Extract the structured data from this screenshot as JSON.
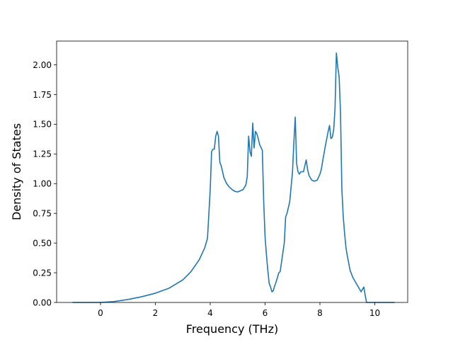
{
  "chart_data": {
    "type": "line",
    "title": "",
    "xlabel": "Frequency (THz)",
    "ylabel": "Density of States",
    "xlim": [
      -1.6,
      11.2
    ],
    "ylim": [
      0,
      2.2
    ],
    "xticks": [
      0,
      2,
      4,
      6,
      8,
      10
    ],
    "xtick_labels": [
      "0",
      "2",
      "4",
      "6",
      "8",
      "10"
    ],
    "yticks": [
      0,
      0.25,
      0.5,
      0.75,
      1.0,
      1.25,
      1.5,
      1.75,
      2.0
    ],
    "ytick_labels": [
      "0.00",
      "0.25",
      "0.50",
      "0.75",
      "1.00",
      "1.25",
      "1.50",
      "1.75",
      "2.00"
    ],
    "grid": false,
    "legend": "none",
    "series": [
      {
        "color": "#1f77b4",
        "x": [
          -1.0,
          0.0,
          0.5,
          1.0,
          1.5,
          2.0,
          2.5,
          3.0,
          3.3,
          3.6,
          3.8,
          3.9,
          4.0,
          4.05,
          4.1,
          4.15,
          4.2,
          4.25,
          4.3,
          4.35,
          4.4,
          4.5,
          4.6,
          4.7,
          4.8,
          4.9,
          5.0,
          5.1,
          5.2,
          5.3,
          5.35,
          5.4,
          5.45,
          5.5,
          5.55,
          5.6,
          5.65,
          5.7,
          5.75,
          5.8,
          5.9,
          5.95,
          6.0,
          6.05,
          6.1,
          6.15,
          6.2,
          6.25,
          6.3,
          6.35,
          6.4,
          6.5,
          6.55,
          6.6,
          6.7,
          6.75,
          6.8,
          6.85,
          6.9,
          7.0,
          7.05,
          7.1,
          7.15,
          7.2,
          7.25,
          7.3,
          7.4,
          7.5,
          7.55,
          7.6,
          7.7,
          7.8,
          7.9,
          8.0,
          8.05,
          8.1,
          8.2,
          8.3,
          8.35,
          8.4,
          8.45,
          8.5,
          8.55,
          8.6,
          8.65,
          8.7,
          8.75,
          8.8,
          8.85,
          8.9,
          8.95,
          9.0,
          9.1,
          9.2,
          9.3,
          9.4,
          9.5,
          9.6,
          9.65,
          9.7,
          9.75,
          9.8,
          10.0,
          10.7
        ],
        "y": [
          0.0,
          0.0,
          0.008,
          0.025,
          0.048,
          0.078,
          0.12,
          0.19,
          0.26,
          0.36,
          0.46,
          0.54,
          0.95,
          1.27,
          1.29,
          1.29,
          1.4,
          1.44,
          1.4,
          1.18,
          1.15,
          1.05,
          1.0,
          0.97,
          0.95,
          0.935,
          0.93,
          0.94,
          0.95,
          0.99,
          1.06,
          1.4,
          1.27,
          1.23,
          1.51,
          1.3,
          1.44,
          1.42,
          1.38,
          1.33,
          1.28,
          0.85,
          0.55,
          0.4,
          0.27,
          0.16,
          0.13,
          0.09,
          0.1,
          0.14,
          0.17,
          0.25,
          0.26,
          0.34,
          0.5,
          0.72,
          0.75,
          0.8,
          0.85,
          1.1,
          1.35,
          1.56,
          1.17,
          1.1,
          1.08,
          1.1,
          1.1,
          1.2,
          1.12,
          1.07,
          1.03,
          1.02,
          1.03,
          1.08,
          1.12,
          1.19,
          1.32,
          1.44,
          1.49,
          1.38,
          1.39,
          1.45,
          1.63,
          2.1,
          1.98,
          1.9,
          1.6,
          0.95,
          0.72,
          0.58,
          0.46,
          0.39,
          0.27,
          0.21,
          0.17,
          0.13,
          0.09,
          0.13,
          0.06,
          0.0,
          0.0,
          0.0,
          0.0,
          0.0
        ]
      }
    ]
  }
}
